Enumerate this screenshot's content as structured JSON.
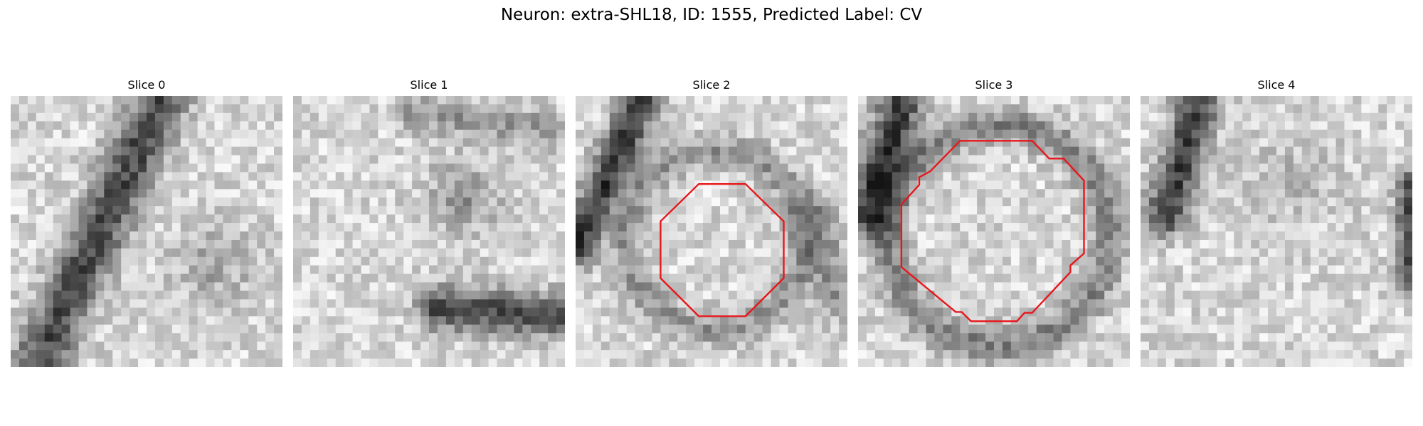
{
  "figure": {
    "title": "Neuron: extra-SHL18, ID: 1555, Predicted Label: CV"
  },
  "slices": [
    {
      "title": "Slice 0",
      "has_contour": false
    },
    {
      "title": "Slice 1",
      "has_contour": false
    },
    {
      "title": "Slice 2",
      "has_contour": true
    },
    {
      "title": "Slice 3",
      "has_contour": true
    },
    {
      "title": "Slice 4",
      "has_contour": false
    }
  ],
  "colors": {
    "contour": "#e8161b",
    "background": "#ffffff",
    "text": "#000000",
    "colormap": "grayscale"
  }
}
